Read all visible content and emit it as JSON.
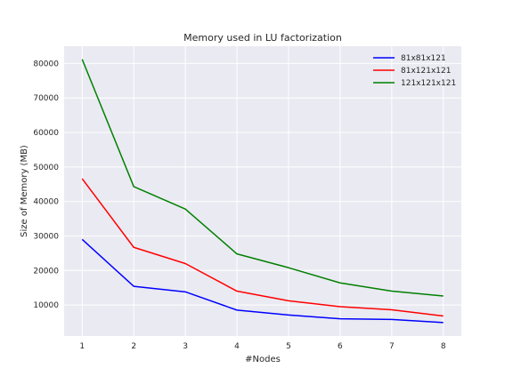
{
  "chart_data": {
    "type": "line",
    "title": "Memory used in LU factorization",
    "xlabel": "#Nodes",
    "ylabel": "Size of Memory (MB)",
    "x": [
      1,
      2,
      3,
      4,
      5,
      6,
      7,
      8
    ],
    "xlim": [
      0.65,
      8.35
    ],
    "ylim": [
      1000,
      85000
    ],
    "yticks": [
      10000,
      20000,
      30000,
      40000,
      50000,
      60000,
      70000,
      80000
    ],
    "grid": true,
    "legend_position": "top-right",
    "series": [
      {
        "name": "81x81x121",
        "color": "#0000ff",
        "values": [
          29000,
          15400,
          13800,
          8500,
          7100,
          6000,
          5800,
          4900
        ]
      },
      {
        "name": "81x121x121",
        "color": "#ff0000",
        "values": [
          46600,
          26700,
          22000,
          14000,
          11200,
          9500,
          8600,
          6800
        ]
      },
      {
        "name": "121x121x121",
        "color": "#008000",
        "values": [
          81200,
          44300,
          37800,
          24800,
          20800,
          16400,
          14000,
          12600
        ]
      }
    ]
  },
  "colors": {
    "plot_background": "#eaeaf2",
    "grid": "#ffffff"
  }
}
